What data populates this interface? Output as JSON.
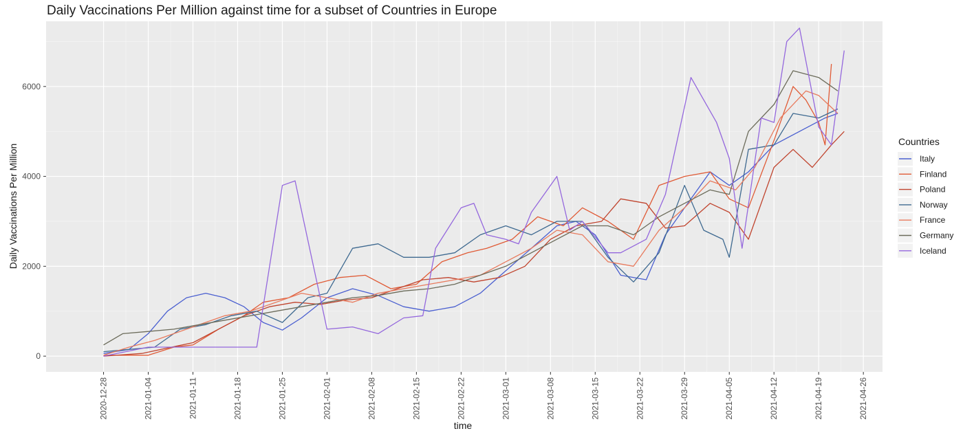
{
  "chart_data": {
    "type": "line",
    "title": "Daily Vaccinations Per Million against time for a subset of Countries in Europe",
    "xlabel": "time",
    "ylabel": "Daily Vaccinations Per Million",
    "x_ticks": [
      "2020-12-28",
      "2021-01-04",
      "2021-01-11",
      "2021-01-18",
      "2021-01-25",
      "2021-02-01",
      "2021-02-08",
      "2021-02-15",
      "2021-02-22",
      "2021-03-01",
      "2021-03-08",
      "2021-03-15",
      "2021-03-22",
      "2021-03-29",
      "2021-04-05",
      "2021-04-12",
      "2021-04-19",
      "2021-04-26"
    ],
    "y_ticks": [
      0,
      2000,
      4000,
      6000
    ],
    "xlim": [
      "2020-12-19",
      "2021-04-29"
    ],
    "ylim": [
      -350,
      7450
    ],
    "grid": true,
    "background": "#ebebeb",
    "legend": {
      "title": "Countries",
      "position": "right"
    },
    "series": [
      {
        "name": "Italy",
        "color": "#4a5fd0",
        "points": [
          [
            "2020-12-28",
            60
          ],
          [
            "2021-01-01",
            150
          ],
          [
            "2021-01-04",
            500
          ],
          [
            "2021-01-07",
            1000
          ],
          [
            "2021-01-10",
            1300
          ],
          [
            "2021-01-13",
            1400
          ],
          [
            "2021-01-16",
            1300
          ],
          [
            "2021-01-19",
            1100
          ],
          [
            "2021-01-22",
            750
          ],
          [
            "2021-01-25",
            580
          ],
          [
            "2021-01-28",
            850
          ],
          [
            "2021-02-01",
            1300
          ],
          [
            "2021-02-05",
            1500
          ],
          [
            "2021-02-09",
            1350
          ],
          [
            "2021-02-13",
            1100
          ],
          [
            "2021-02-17",
            1000
          ],
          [
            "2021-02-21",
            1100
          ],
          [
            "2021-02-25",
            1400
          ],
          [
            "2021-03-01",
            1900
          ],
          [
            "2021-03-05",
            2400
          ],
          [
            "2021-03-09",
            2900
          ],
          [
            "2021-03-12",
            3000
          ],
          [
            "2021-03-15",
            2700
          ],
          [
            "2021-03-19",
            1800
          ],
          [
            "2021-03-23",
            1700
          ],
          [
            "2021-03-26",
            2700
          ],
          [
            "2021-03-30",
            3500
          ],
          [
            "2021-04-02",
            4100
          ],
          [
            "2021-04-05",
            3800
          ],
          [
            "2021-04-08",
            4100
          ],
          [
            "2021-04-12",
            4700
          ],
          [
            "2021-04-16",
            5000
          ],
          [
            "2021-04-20",
            5300
          ],
          [
            "2021-04-22",
            5400
          ]
        ]
      },
      {
        "name": "Finland",
        "color": "#e05a35",
        "points": [
          [
            "2020-12-28",
            20
          ],
          [
            "2021-01-04",
            20
          ],
          [
            "2021-01-08",
            200
          ],
          [
            "2021-01-11",
            250
          ],
          [
            "2021-01-15",
            600
          ],
          [
            "2021-01-19",
            900
          ],
          [
            "2021-01-22",
            1200
          ],
          [
            "2021-01-26",
            1300
          ],
          [
            "2021-01-30",
            1600
          ],
          [
            "2021-02-03",
            1750
          ],
          [
            "2021-02-07",
            1800
          ],
          [
            "2021-02-11",
            1500
          ],
          [
            "2021-02-15",
            1600
          ],
          [
            "2021-02-19",
            2100
          ],
          [
            "2021-02-23",
            2300
          ],
          [
            "2021-02-26",
            2400
          ],
          [
            "2021-03-02",
            2600
          ],
          [
            "2021-03-06",
            3100
          ],
          [
            "2021-03-10",
            2900
          ],
          [
            "2021-03-13",
            3300
          ],
          [
            "2021-03-17",
            3000
          ],
          [
            "2021-03-21",
            2600
          ],
          [
            "2021-03-25",
            3800
          ],
          [
            "2021-03-29",
            4000
          ],
          [
            "2021-04-02",
            4100
          ],
          [
            "2021-04-05",
            3500
          ],
          [
            "2021-04-08",
            3300
          ],
          [
            "2021-04-12",
            4800
          ],
          [
            "2021-04-15",
            6000
          ],
          [
            "2021-04-17",
            5700
          ],
          [
            "2021-04-19",
            5200
          ],
          [
            "2021-04-20",
            4700
          ],
          [
            "2021-04-21",
            6500
          ]
        ]
      },
      {
        "name": "Poland",
        "color": "#c0442e",
        "points": [
          [
            "2020-12-28",
            0
          ],
          [
            "2021-01-03",
            60
          ],
          [
            "2021-01-07",
            180
          ],
          [
            "2021-01-11",
            300
          ],
          [
            "2021-01-15",
            600
          ],
          [
            "2021-01-19",
            900
          ],
          [
            "2021-01-23",
            1100
          ],
          [
            "2021-01-27",
            1200
          ],
          [
            "2021-01-31",
            1150
          ],
          [
            "2021-02-04",
            1250
          ],
          [
            "2021-02-08",
            1300
          ],
          [
            "2021-02-12",
            1500
          ],
          [
            "2021-02-16",
            1700
          ],
          [
            "2021-02-20",
            1750
          ],
          [
            "2021-02-24",
            1650
          ],
          [
            "2021-02-28",
            1750
          ],
          [
            "2021-03-04",
            2000
          ],
          [
            "2021-03-08",
            2600
          ],
          [
            "2021-03-12",
            2900
          ],
          [
            "2021-03-16",
            3000
          ],
          [
            "2021-03-19",
            3500
          ],
          [
            "2021-03-23",
            3400
          ],
          [
            "2021-03-26",
            2850
          ],
          [
            "2021-03-29",
            2900
          ],
          [
            "2021-04-02",
            3400
          ],
          [
            "2021-04-05",
            3200
          ],
          [
            "2021-04-08",
            2600
          ],
          [
            "2021-04-12",
            4200
          ],
          [
            "2021-04-15",
            4600
          ],
          [
            "2021-04-18",
            4200
          ],
          [
            "2021-04-21",
            4700
          ],
          [
            "2021-04-23",
            5000
          ]
        ]
      },
      {
        "name": "Norway",
        "color": "#3e6990",
        "points": [
          [
            "2020-12-28",
            100
          ],
          [
            "2021-01-01",
            150
          ],
          [
            "2021-01-05",
            200
          ],
          [
            "2021-01-09",
            600
          ],
          [
            "2021-01-13",
            700
          ],
          [
            "2021-01-17",
            900
          ],
          [
            "2021-01-21",
            1000
          ],
          [
            "2021-01-25",
            750
          ],
          [
            "2021-01-29",
            1300
          ],
          [
            "2021-02-01",
            1400
          ],
          [
            "2021-02-05",
            2400
          ],
          [
            "2021-02-09",
            2500
          ],
          [
            "2021-02-13",
            2200
          ],
          [
            "2021-02-17",
            2200
          ],
          [
            "2021-02-21",
            2300
          ],
          [
            "2021-02-25",
            2700
          ],
          [
            "2021-03-01",
            2900
          ],
          [
            "2021-03-05",
            2700
          ],
          [
            "2021-03-09",
            3000
          ],
          [
            "2021-03-13",
            3000
          ],
          [
            "2021-03-17",
            2200
          ],
          [
            "2021-03-21",
            1650
          ],
          [
            "2021-03-25",
            2300
          ],
          [
            "2021-03-29",
            3800
          ],
          [
            "2021-04-01",
            2800
          ],
          [
            "2021-04-04",
            2600
          ],
          [
            "2021-04-05",
            2200
          ],
          [
            "2021-04-08",
            4600
          ],
          [
            "2021-04-12",
            4700
          ],
          [
            "2021-04-15",
            5400
          ],
          [
            "2021-04-19",
            5300
          ],
          [
            "2021-04-22",
            5500
          ]
        ]
      },
      {
        "name": "France",
        "color": "#e87a5d",
        "points": [
          [
            "2020-12-28",
            20
          ],
          [
            "2021-01-01",
            200
          ],
          [
            "2021-01-05",
            350
          ],
          [
            "2021-01-08",
            500
          ],
          [
            "2021-01-12",
            700
          ],
          [
            "2021-01-16",
            900
          ],
          [
            "2021-01-20",
            1000
          ],
          [
            "2021-01-24",
            1200
          ],
          [
            "2021-01-28",
            1400
          ],
          [
            "2021-02-01",
            1300
          ],
          [
            "2021-02-05",
            1200
          ],
          [
            "2021-02-09",
            1400
          ],
          [
            "2021-02-13",
            1500
          ],
          [
            "2021-02-17",
            1600
          ],
          [
            "2021-02-21",
            1700
          ],
          [
            "2021-02-25",
            1800
          ],
          [
            "2021-03-01",
            2100
          ],
          [
            "2021-03-05",
            2400
          ],
          [
            "2021-03-09",
            2800
          ],
          [
            "2021-03-13",
            2700
          ],
          [
            "2021-03-17",
            2100
          ],
          [
            "2021-03-21",
            2000
          ],
          [
            "2021-03-25",
            2800
          ],
          [
            "2021-03-29",
            3300
          ],
          [
            "2021-04-02",
            3900
          ],
          [
            "2021-04-06",
            3700
          ],
          [
            "2021-04-09",
            4200
          ],
          [
            "2021-04-13",
            5300
          ],
          [
            "2021-04-17",
            5900
          ],
          [
            "2021-04-19",
            5800
          ],
          [
            "2021-04-22",
            5400
          ]
        ]
      },
      {
        "name": "Germany",
        "color": "#6b6b5a",
        "points": [
          [
            "2020-12-28",
            250
          ],
          [
            "2020-12-31",
            500
          ],
          [
            "2021-01-04",
            550
          ],
          [
            "2021-01-08",
            600
          ],
          [
            "2021-01-12",
            700
          ],
          [
            "2021-01-16",
            800
          ],
          [
            "2021-01-20",
            900
          ],
          [
            "2021-01-24",
            1000
          ],
          [
            "2021-01-28",
            1100
          ],
          [
            "2021-02-01",
            1200
          ],
          [
            "2021-02-05",
            1300
          ],
          [
            "2021-02-09",
            1350
          ],
          [
            "2021-02-13",
            1450
          ],
          [
            "2021-02-17",
            1500
          ],
          [
            "2021-02-21",
            1600
          ],
          [
            "2021-02-25",
            1800
          ],
          [
            "2021-03-01",
            2000
          ],
          [
            "2021-03-05",
            2300
          ],
          [
            "2021-03-09",
            2600
          ],
          [
            "2021-03-13",
            2900
          ],
          [
            "2021-03-17",
            2900
          ],
          [
            "2021-03-21",
            2700
          ],
          [
            "2021-03-25",
            3100
          ],
          [
            "2021-03-29",
            3400
          ],
          [
            "2021-04-02",
            3700
          ],
          [
            "2021-04-05",
            3600
          ],
          [
            "2021-04-08",
            5000
          ],
          [
            "2021-04-12",
            5600
          ],
          [
            "2021-04-15",
            6350
          ],
          [
            "2021-04-19",
            6200
          ],
          [
            "2021-04-22",
            5900
          ]
        ]
      },
      {
        "name": "Iceland",
        "color": "#9467dd",
        "points": [
          [
            "2020-12-28",
            0
          ],
          [
            "2021-01-04",
            200
          ],
          [
            "2021-01-11",
            200
          ],
          [
            "2021-01-17",
            200
          ],
          [
            "2021-01-21",
            200
          ],
          [
            "2021-01-25",
            3800
          ],
          [
            "2021-01-27",
            3900
          ],
          [
            "2021-02-01",
            600
          ],
          [
            "2021-02-05",
            650
          ],
          [
            "2021-02-09",
            500
          ],
          [
            "2021-02-13",
            850
          ],
          [
            "2021-02-16",
            900
          ],
          [
            "2021-02-18",
            2400
          ],
          [
            "2021-02-22",
            3300
          ],
          [
            "2021-02-24",
            3400
          ],
          [
            "2021-02-26",
            2700
          ],
          [
            "2021-03-01",
            2600
          ],
          [
            "2021-03-03",
            2500
          ],
          [
            "2021-03-05",
            3200
          ],
          [
            "2021-03-09",
            4000
          ],
          [
            "2021-03-11",
            2800
          ],
          [
            "2021-03-13",
            3000
          ],
          [
            "2021-03-17",
            2300
          ],
          [
            "2021-03-19",
            2300
          ],
          [
            "2021-03-23",
            2600
          ],
          [
            "2021-03-26",
            3600
          ],
          [
            "2021-03-30",
            6200
          ],
          [
            "2021-04-01",
            5700
          ],
          [
            "2021-04-03",
            5200
          ],
          [
            "2021-04-05",
            4400
          ],
          [
            "2021-04-07",
            2400
          ],
          [
            "2021-04-10",
            5300
          ],
          [
            "2021-04-12",
            5200
          ],
          [
            "2021-04-14",
            7000
          ],
          [
            "2021-04-16",
            7300
          ],
          [
            "2021-04-19",
            5100
          ],
          [
            "2021-04-21",
            4700
          ],
          [
            "2021-04-23",
            6800
          ]
        ]
      }
    ]
  }
}
